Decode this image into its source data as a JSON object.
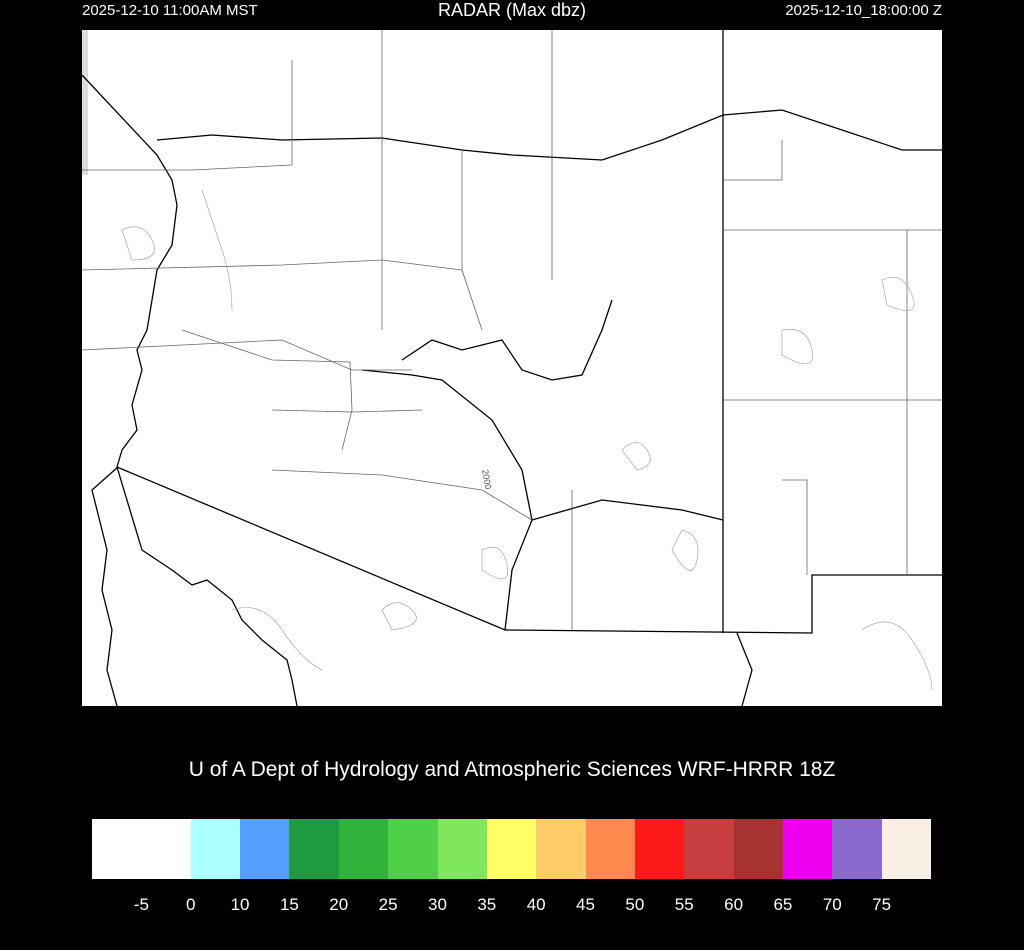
{
  "header": {
    "title": "RADAR (Max dbz)",
    "local_time": "2025-12-10 11:00AM MST",
    "utc_time": "2025-12-10_18:00:00 Z"
  },
  "map": {
    "region": "Arizona and surrounding areas",
    "contour_label": "2000",
    "radar_echoes": "none"
  },
  "credit": "U of A Dept of Hydrology and Atmospheric Sciences WRF-HRRR 18Z",
  "colorbar": {
    "colors": [
      "#ffffff",
      "#ffffff",
      "#aaffff",
      "#55a0ff",
      "#1f9a40",
      "#2fb33b",
      "#50cf48",
      "#80e65c",
      "#ffff66",
      "#ffcb66",
      "#ff8a50",
      "#ff1a1a",
      "#c83e3e",
      "#a63232",
      "#ee00ee",
      "#8a68cc",
      "#f8eee4"
    ],
    "tick_labels": [
      "-5",
      "0",
      "10",
      "15",
      "20",
      "25",
      "30",
      "35",
      "40",
      "45",
      "50",
      "55",
      "60",
      "65",
      "70",
      "75"
    ]
  }
}
